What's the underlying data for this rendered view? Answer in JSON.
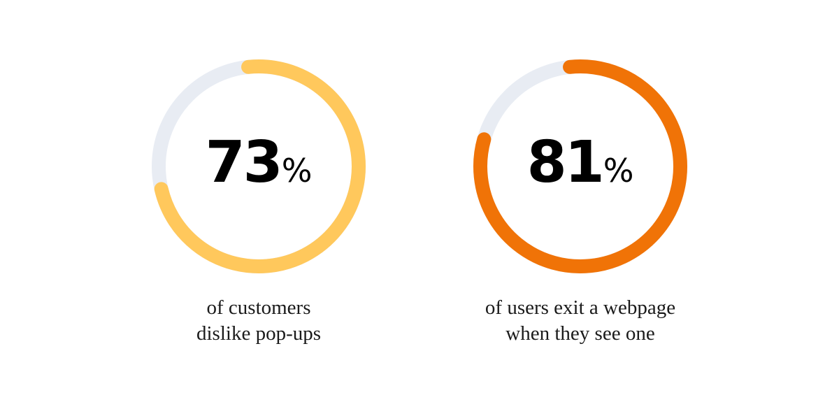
{
  "chart_data": [
    {
      "type": "donut",
      "value": 73,
      "unit": "%",
      "max": 100,
      "caption": [
        "of customers",
        "dislike pop-ups"
      ],
      "colors": {
        "fill": "#FFC85C",
        "track": "#E8ECF3"
      }
    },
    {
      "type": "donut",
      "value": 81,
      "unit": "%",
      "max": 100,
      "caption": [
        "of users exit a webpage",
        "when they see one"
      ],
      "colors": {
        "fill": "#F07307",
        "track": "#E8ECF3"
      }
    }
  ]
}
